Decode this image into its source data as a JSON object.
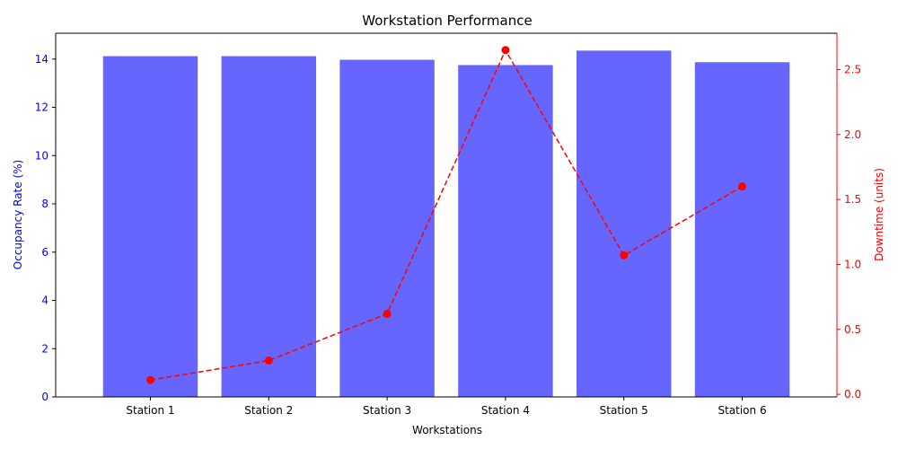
{
  "chart_data": {
    "type": "bar",
    "title": "Workstation Performance",
    "xlabel": "Workstations",
    "ylabel": "Occupancy Rate (%)",
    "y2label": "Downtime (units)",
    "categories": [
      "Station 1",
      "Station 2",
      "Station 3",
      "Station 4",
      "Station 5",
      "Station 6"
    ],
    "series": [
      {
        "type": "bar",
        "axis": "left",
        "color": "#6666ff",
        "values": [
          14.12,
          14.12,
          13.97,
          13.75,
          14.35,
          13.87
        ]
      },
      {
        "type": "line",
        "axis": "right",
        "color": "#ff0000",
        "line_style": "dashed",
        "marker": "circle",
        "values": [
          0.11,
          0.26,
          0.62,
          2.65,
          1.07,
          1.6
        ]
      }
    ],
    "ylim": [
      0,
      15.07
    ],
    "y2lim": [
      -0.02,
      2.78
    ],
    "yticks": [
      0,
      2,
      4,
      6,
      8,
      10,
      12,
      14
    ],
    "y2ticks": [
      0.0,
      0.5,
      1.0,
      1.5,
      2.0,
      2.5
    ],
    "ytick_labels": [
      "0",
      "2",
      "4",
      "6",
      "8",
      "10",
      "12",
      "14"
    ],
    "y2tick_labels": [
      "0.0",
      "0.5",
      "1.0",
      "1.5",
      "2.0",
      "2.5"
    ],
    "left_axis_color": "#0000ff",
    "right_axis_color": "#ff0000",
    "grid": false,
    "legend": "none"
  }
}
